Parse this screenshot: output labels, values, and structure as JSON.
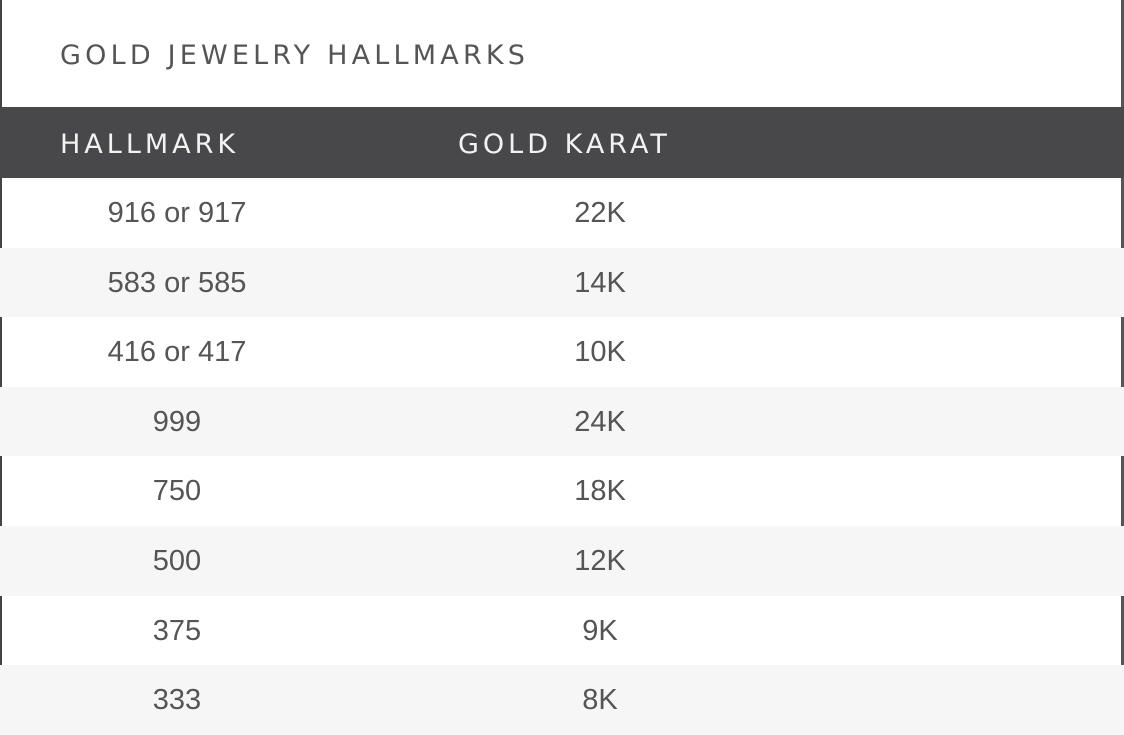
{
  "title": "GOLD JEWELRY HALLMARKS",
  "table": {
    "headers": [
      "HALLMARK",
      "GOLD KARAT"
    ],
    "rows": [
      {
        "hallmark": "916 or 917",
        "karat": "22K"
      },
      {
        "hallmark": "583 or 585",
        "karat": "14K"
      },
      {
        "hallmark": "416 or 417",
        "karat": "10K"
      },
      {
        "hallmark": "999",
        "karat": "24K"
      },
      {
        "hallmark": "750",
        "karat": "18K"
      },
      {
        "hallmark": "500",
        "karat": "12K"
      },
      {
        "hallmark": "375",
        "karat": "9K"
      },
      {
        "hallmark": "333",
        "karat": "8K"
      }
    ]
  },
  "colors": {
    "header_bg": "#48484a",
    "stripe": "#f6f6f6",
    "text": "#555555"
  }
}
